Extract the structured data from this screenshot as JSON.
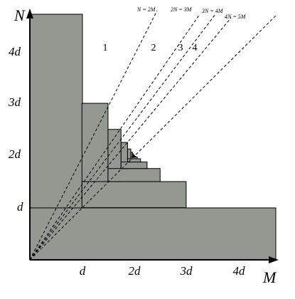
{
  "axes": {
    "y_label": "N",
    "x_label": "M",
    "y_ticks": [
      "4d",
      "3d",
      "2d",
      "d"
    ],
    "x_ticks": [
      "d",
      "2d",
      "3d",
      "4d"
    ]
  },
  "lines": [
    "N = 2M",
    "2N = 3M",
    "3N = 4M",
    "4N = 5M"
  ],
  "regions": [
    "1",
    "2",
    "3",
    "4"
  ]
}
